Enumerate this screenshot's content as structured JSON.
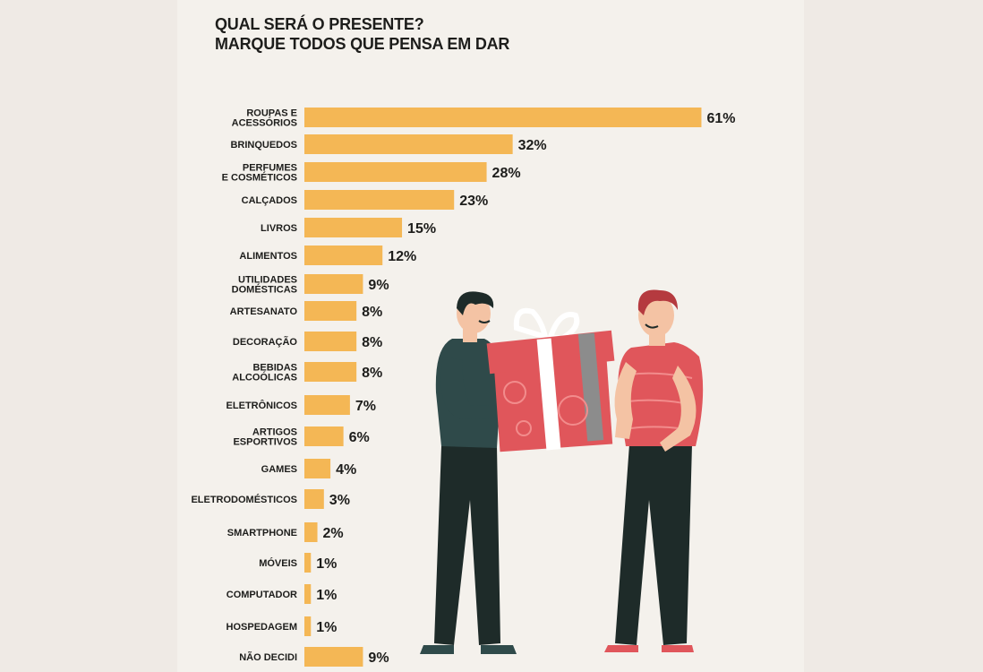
{
  "title_line1": "QUAL SERÁ O PRESENTE?",
  "title_line2": "MARQUE TODOS QUE PENSA EM DAR",
  "colors": {
    "bar": "#f4b755",
    "text": "#1d1d1b",
    "background": "#f4f1ec"
  },
  "chart_data": {
    "type": "bar",
    "orientation": "horizontal",
    "title": "QUAL SERÁ O PRESENTE? MARQUE TODOS QUE PENSA EM DAR",
    "value_suffix": "%",
    "categories": [
      [
        "ROUPAS E",
        "ACESSÓRIOS"
      ],
      [
        "BRINQUEDOS"
      ],
      [
        "PERFUMES",
        "E COSMÉTICOS"
      ],
      [
        "CALÇADOS"
      ],
      [
        "LIVROS"
      ],
      [
        "ALIMENTOS"
      ],
      [
        "UTILIDADES",
        "DOMÉSTICAS"
      ],
      [
        "ARTESANATO"
      ],
      [
        "DECORAÇÃO"
      ],
      [
        "BEBIDAS",
        "ALCOÓLICAS"
      ],
      [
        "ELETRÔNICOS"
      ],
      [
        "ARTIGOS",
        "ESPORTIVOS"
      ],
      [
        "GAMES"
      ],
      [
        "ELETRODOMÉSTICOS"
      ],
      [
        "SMARTPHONE"
      ],
      [
        "MÓVEIS"
      ],
      [
        "COMPUTADOR"
      ],
      [
        "HOSPEDAGEM"
      ],
      [
        "NÃO DECIDI"
      ]
    ],
    "values": [
      61,
      32,
      28,
      23,
      15,
      12,
      9,
      8,
      8,
      8,
      7,
      6,
      4,
      3,
      2,
      1,
      1,
      1,
      9
    ],
    "value_labels": [
      "61%",
      "32%",
      "28%",
      "23%",
      "15%",
      "12%",
      "9%",
      "8%",
      "8%",
      "8%",
      "7%",
      "6%",
      "4%",
      "3%",
      "2%",
      "1%",
      "1%",
      "1%",
      "9%"
    ],
    "grid": false,
    "legend": "none"
  }
}
